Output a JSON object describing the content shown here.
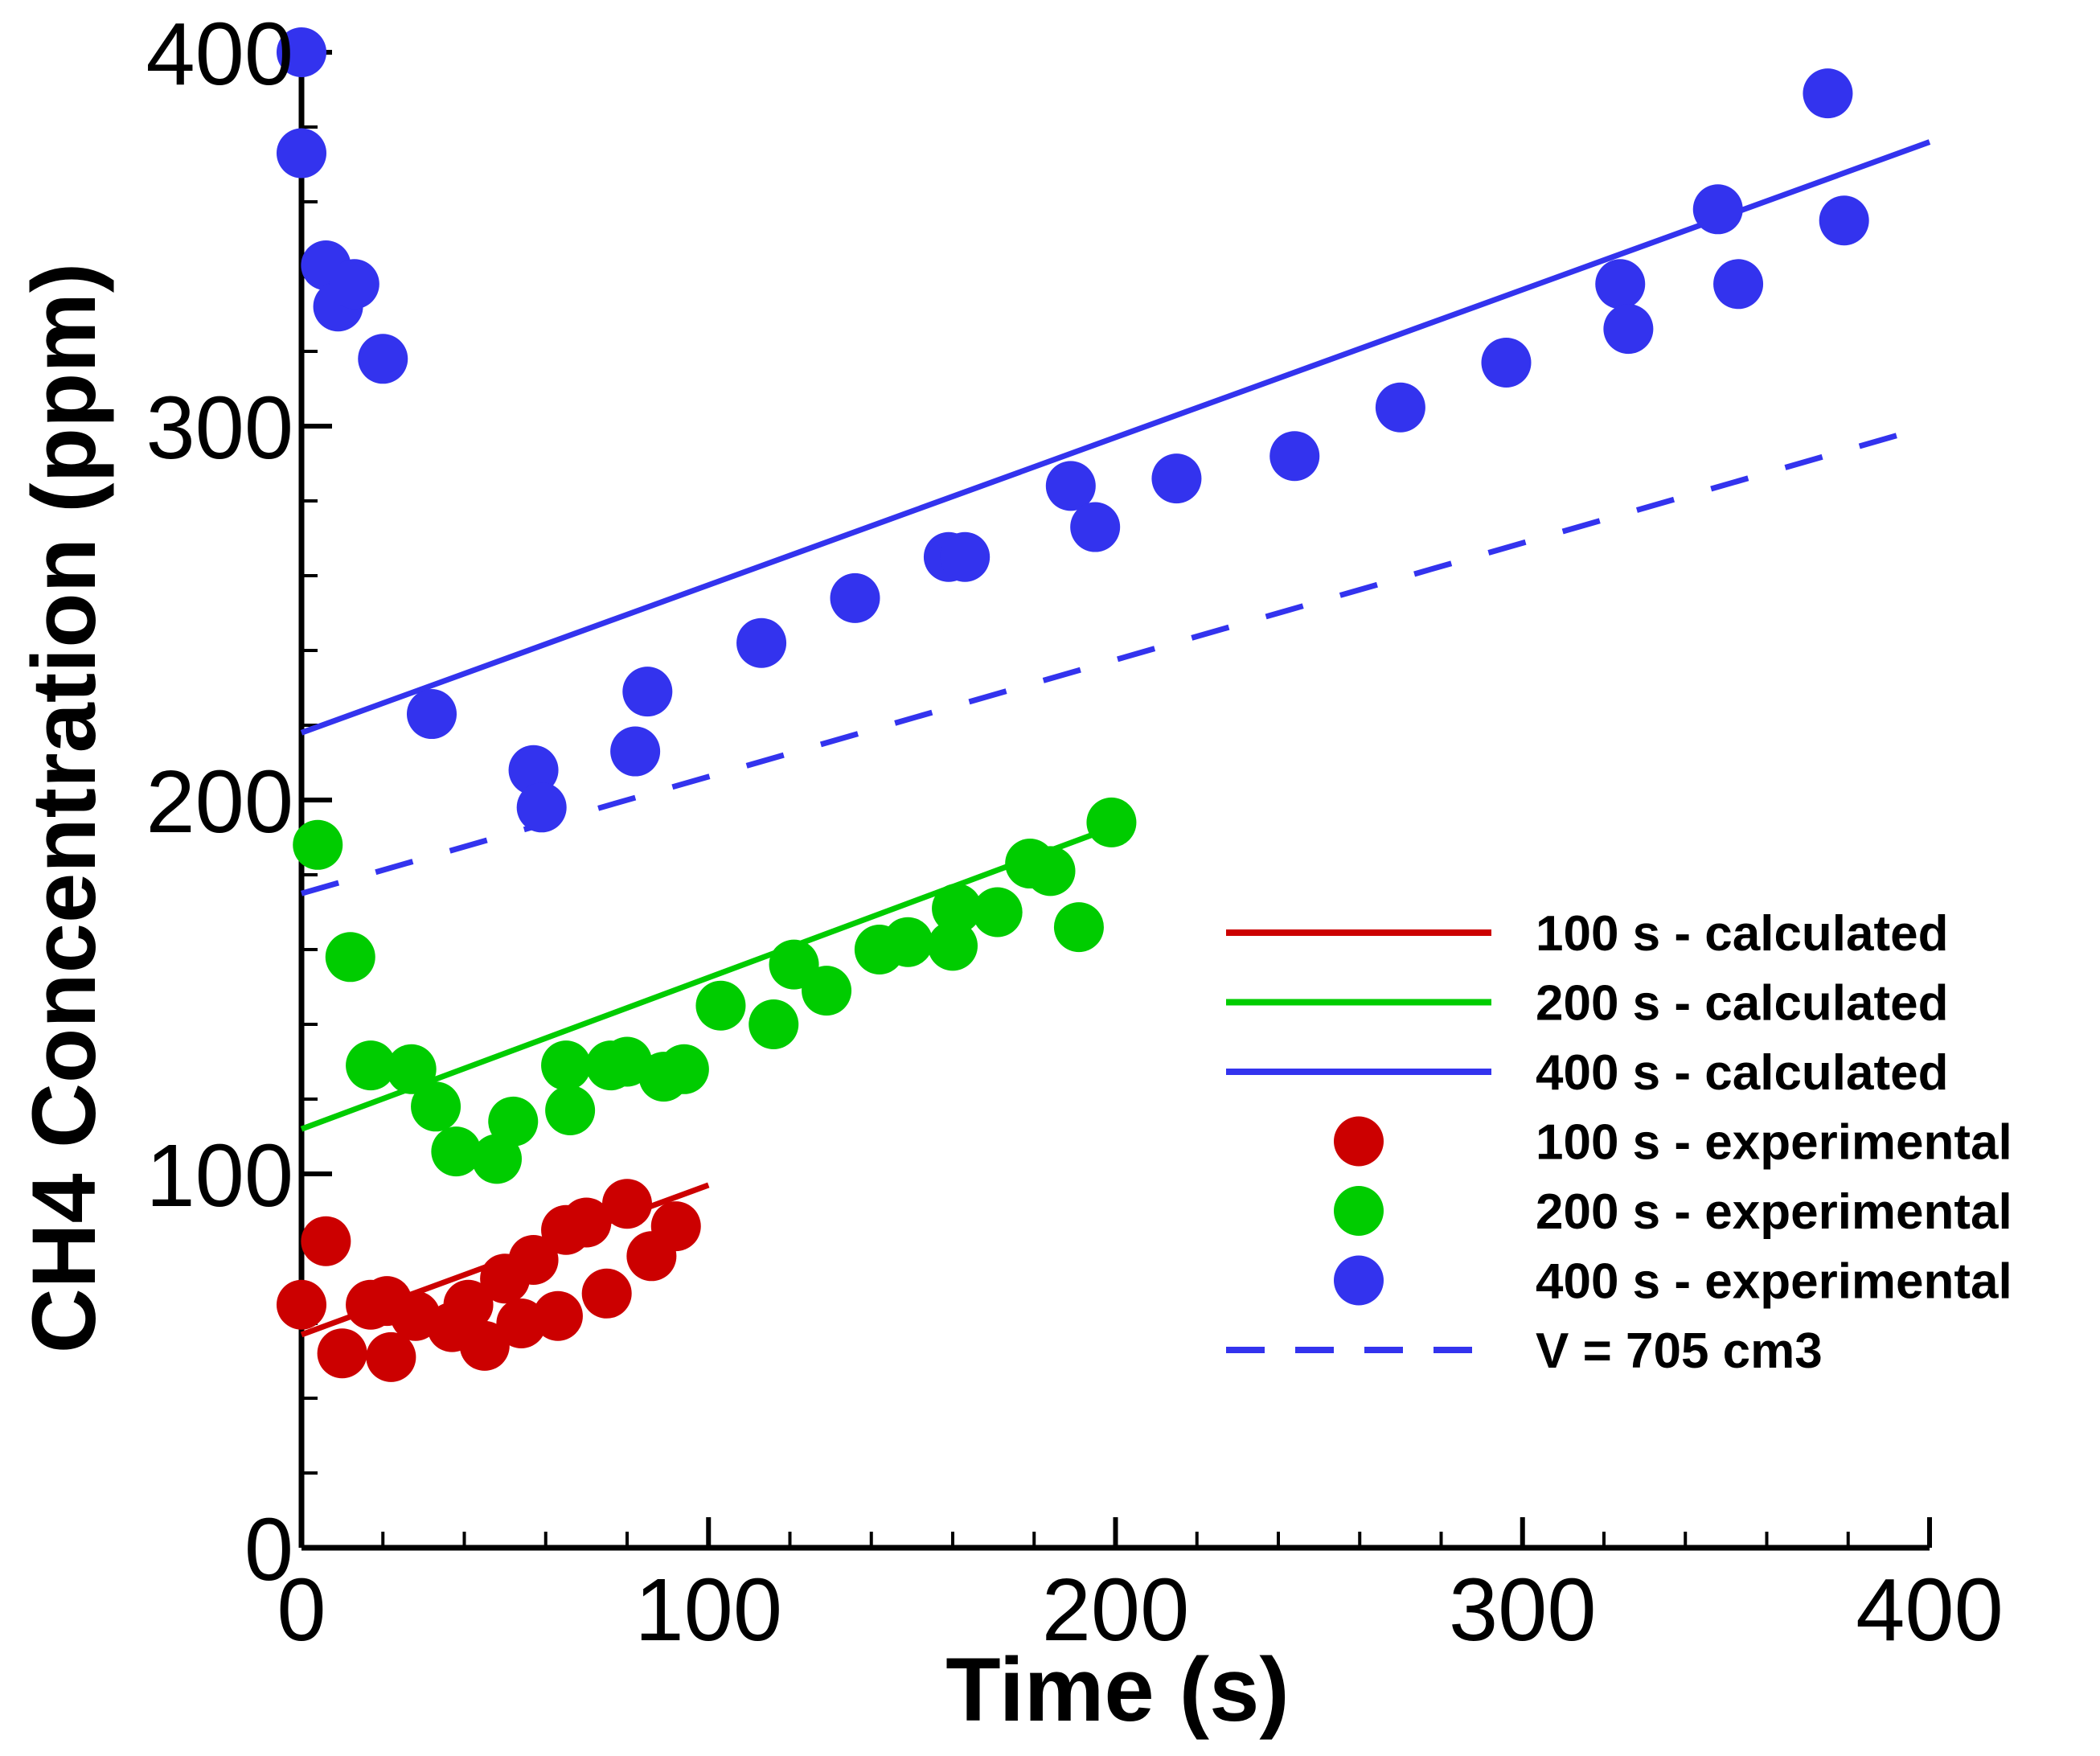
{
  "chart_data": {
    "type": "scatter",
    "title": "",
    "xlabel": "Time (s)",
    "ylabel": "CH4 Concentration (ppm)",
    "xlim": [
      0,
      400
    ],
    "ylim": [
      0,
      400
    ],
    "x_ticks": [
      0,
      100,
      200,
      300,
      400
    ],
    "y_ticks": [
      0,
      100,
      200,
      300,
      400
    ],
    "x_tick_labels": [
      "0",
      "100",
      "200",
      "300",
      "400"
    ],
    "y_tick_labels": [
      "0",
      "100",
      "200",
      "300",
      "400"
    ],
    "grid": false,
    "legend_position": "lower-right",
    "series": [
      {
        "name": "100 s - calculated",
        "kind": "line",
        "style": "solid",
        "color": "#cc0000",
        "x": [
          0,
          100
        ],
        "y": [
          57,
          97
        ]
      },
      {
        "name": "200 s - calculated",
        "kind": "line",
        "style": "solid",
        "color": "#00cc00",
        "x": [
          0,
          200
        ],
        "y": [
          112,
          193
        ]
      },
      {
        "name": "400 s - calculated",
        "kind": "line",
        "style": "solid",
        "color": "#3333ee",
        "x": [
          0,
          400
        ],
        "y": [
          218,
          376
        ]
      },
      {
        "name": "100 s - experimental",
        "kind": "scatter",
        "color": "#cc0000",
        "x": [
          0,
          6,
          10,
          17,
          21,
          22,
          28,
          37,
          41,
          45,
          50,
          54,
          57,
          63,
          65,
          70,
          75,
          80,
          86,
          92
        ],
        "y": [
          65,
          82,
          52,
          65,
          66,
          51,
          62,
          59,
          65,
          54,
          72,
          60,
          77,
          62,
          85,
          87,
          68,
          92,
          78,
          86
        ]
      },
      {
        "name": "200 s - experimental",
        "kind": "scatter",
        "color": "#00cc00",
        "x": [
          4,
          12,
          17,
          27,
          33,
          38,
          48,
          52,
          65,
          66,
          76,
          80,
          89,
          94,
          103,
          116,
          121,
          129,
          142,
          149,
          160,
          161,
          171,
          179,
          184,
          191,
          199
        ],
        "y": [
          188,
          158,
          129,
          128,
          118,
          106,
          104,
          114,
          129,
          117,
          129,
          130,
          126,
          128,
          145,
          140,
          156,
          149,
          160,
          162,
          161,
          171,
          170,
          183,
          181,
          166,
          194
        ]
      },
      {
        "name": "400 s - experimental",
        "kind": "scatter",
        "color": "#3333ee",
        "x": [
          0,
          0,
          6,
          9,
          13,
          20,
          32,
          57,
          59,
          82,
          85,
          113,
          136,
          159,
          163,
          189,
          195,
          215,
          244,
          270,
          296,
          324,
          326,
          348,
          353,
          375,
          379
        ],
        "y": [
          400,
          373,
          343,
          332,
          338,
          318,
          223,
          208,
          198,
          213,
          229,
          242,
          254,
          265,
          265,
          284,
          273,
          286,
          292,
          305,
          317,
          338,
          326,
          358,
          338,
          389,
          355
        ]
      },
      {
        "name": "V = 705 cm3",
        "kind": "line",
        "style": "dashed",
        "color": "#3333ee",
        "x": [
          0,
          400
        ],
        "y": [
          175,
          300
        ]
      }
    ]
  }
}
